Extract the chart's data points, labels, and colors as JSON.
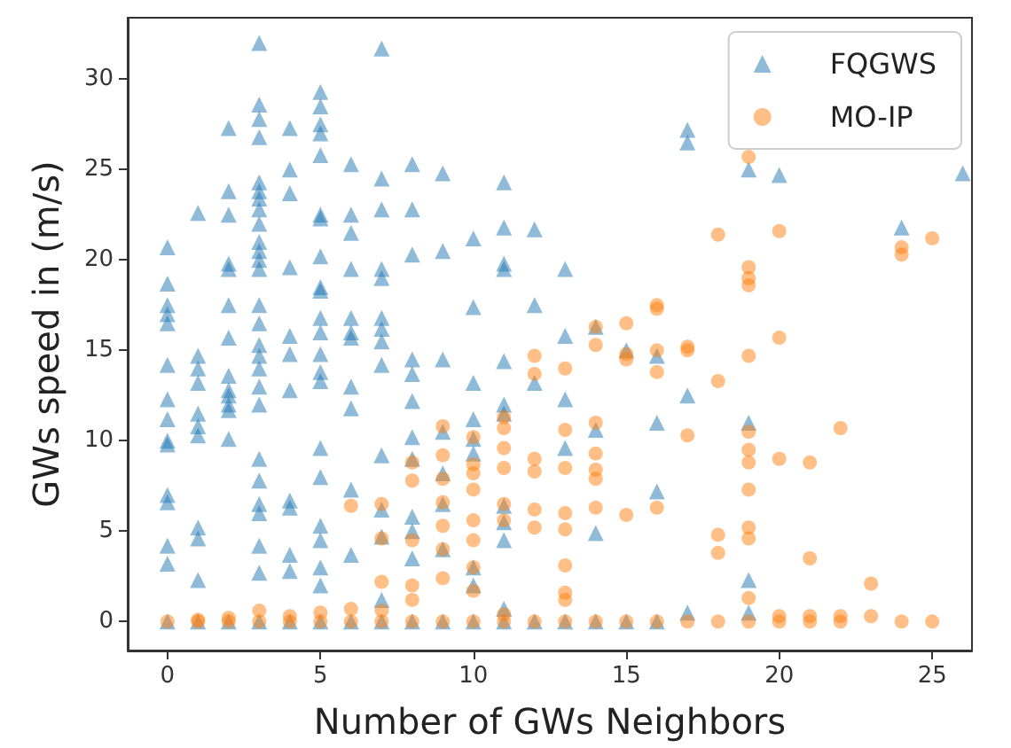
{
  "chart_data": {
    "type": "scatter",
    "xlabel": "Number of GWs Neighbors",
    "ylabel": "GWs speed in (m/s)",
    "xlim": [
      -1.3,
      26.3
    ],
    "ylim": [
      -1.6,
      33.4
    ],
    "xticks": [
      0,
      5,
      10,
      15,
      20,
      25
    ],
    "yticks": [
      0,
      5,
      10,
      15,
      20,
      25,
      30
    ],
    "grid": false,
    "legend": "top right",
    "series": [
      {
        "name": "FQGWS",
        "color": "#1f77b4",
        "marker": "triangle",
        "x": [
          0,
          0,
          0,
          0,
          0,
          0,
          0,
          0,
          0,
          0,
          0,
          0,
          0,
          0,
          0,
          1,
          1,
          1,
          1,
          1,
          1,
          1,
          1,
          1,
          1,
          1,
          2,
          2,
          2,
          2,
          2,
          2,
          2,
          2,
          2,
          2,
          2,
          2,
          2,
          2,
          3,
          3,
          3,
          3,
          3,
          3,
          3,
          3,
          3,
          3,
          3,
          3,
          3,
          3,
          3,
          3,
          3,
          3,
          3,
          3,
          3,
          3,
          3,
          3,
          3,
          3,
          3,
          4,
          4,
          4,
          4,
          4,
          4,
          4,
          4,
          4,
          4,
          4,
          4,
          5,
          5,
          5,
          5,
          5,
          5,
          5,
          5,
          5,
          5,
          5,
          5,
          5,
          5,
          5,
          5,
          5,
          5,
          5,
          5,
          5,
          5,
          6,
          6,
          6,
          6,
          6,
          6,
          6,
          6,
          6,
          6,
          6,
          6,
          7,
          7,
          7,
          7,
          7,
          7,
          7,
          7,
          7,
          7,
          7,
          7,
          7,
          7,
          8,
          8,
          8,
          8,
          8,
          8,
          8,
          8,
          8,
          8,
          8,
          8,
          9,
          9,
          9,
          9,
          9,
          9,
          9,
          9,
          10,
          10,
          10,
          10,
          10,
          10,
          10,
          10,
          10,
          11,
          11,
          11,
          11,
          11,
          11,
          11,
          11,
          11,
          11,
          11,
          11,
          12,
          12,
          12,
          12,
          13,
          13,
          13,
          13,
          13,
          14,
          14,
          14,
          14,
          15,
          15,
          16,
          16,
          16,
          16,
          17,
          17,
          17,
          17,
          19,
          19,
          19,
          19,
          20,
          24,
          26
        ],
        "values": [
          20.7,
          18.7,
          17.5,
          17,
          16.5,
          14.2,
          12.3,
          11.2,
          10,
          9.8,
          7,
          6.6,
          4.2,
          3.2,
          0,
          22.6,
          14.7,
          14,
          13.2,
          11.5,
          10.8,
          10.3,
          5.2,
          4.6,
          2.3,
          0,
          27.3,
          23.8,
          22.5,
          19.8,
          19.5,
          17.5,
          15.7,
          13.6,
          12.8,
          12.5,
          12,
          11.7,
          10.1,
          0,
          32,
          28.6,
          27.8,
          26.8,
          24.3,
          23.8,
          23.4,
          22.8,
          22,
          21,
          20.5,
          20,
          19.5,
          17.5,
          16.5,
          15.3,
          14.7,
          14,
          13,
          12,
          9,
          7.8,
          6.5,
          6,
          4.2,
          2.7,
          0,
          27.3,
          25,
          23.7,
          19.6,
          15.8,
          14.8,
          12.8,
          6.7,
          6.3,
          3.7,
          2.8,
          0,
          29.3,
          28.5,
          27.5,
          27,
          25.8,
          22.5,
          22.3,
          20.2,
          18.5,
          18.3,
          16.8,
          16,
          14.8,
          13.8,
          13.3,
          9.6,
          8,
          5.3,
          4.5,
          3,
          2,
          0,
          25.3,
          22.5,
          21.5,
          19.5,
          16.8,
          16,
          15.7,
          13,
          11.8,
          7.3,
          3.7,
          0,
          31.7,
          24.5,
          22.8,
          19.5,
          19,
          16.8,
          16.2,
          15.5,
          14.2,
          9.2,
          6.2,
          4.7,
          1.2,
          0,
          25.3,
          22.8,
          20.3,
          14.5,
          13.7,
          12.2,
          10.2,
          9,
          5.8,
          5,
          3.5,
          0,
          24.8,
          20.5,
          14.5,
          10.5,
          8.2,
          6.5,
          4,
          0,
          21.2,
          17.4,
          13.2,
          11.2,
          10.1,
          9.3,
          3,
          2,
          0,
          24.3,
          21.8,
          19.8,
          19.5,
          14.4,
          12,
          11.5,
          6.4,
          5.5,
          4.5,
          0.7,
          0,
          21.7,
          17.5,
          13.2,
          0,
          19.5,
          15.8,
          12.3,
          9.6,
          0,
          16.3,
          10.6,
          4.9,
          0,
          15,
          0,
          14.7,
          11,
          7.2,
          0,
          27.2,
          26.5,
          12.5,
          0.5,
          25,
          11,
          2.3,
          0.5,
          24.7,
          21.8,
          24.8
        ]
      },
      {
        "name": "MO-IP",
        "color": "#ff7f0e",
        "marker": "circle",
        "x": [
          0,
          1,
          1,
          2,
          2,
          3,
          3,
          4,
          4,
          5,
          5,
          6,
          6,
          6,
          7,
          7,
          7,
          7,
          7,
          8,
          8,
          8,
          8,
          8,
          8,
          9,
          9,
          9,
          9,
          9,
          9,
          9,
          9,
          10,
          10,
          10,
          10,
          10,
          10,
          10,
          10,
          10,
          11,
          11,
          11,
          11,
          11,
          11,
          11,
          11,
          12,
          12,
          12,
          12,
          12,
          12,
          12,
          13,
          13,
          13,
          13,
          13,
          13,
          13,
          13,
          13,
          14,
          14,
          14,
          14,
          14,
          14,
          14,
          14,
          15,
          15,
          15,
          15,
          15,
          16,
          16,
          16,
          16,
          16,
          16,
          17,
          17,
          17,
          17,
          18,
          18,
          18,
          18,
          18,
          19,
          19,
          19,
          19,
          19,
          19,
          19,
          19,
          19,
          19,
          19,
          19,
          19,
          20,
          20,
          20,
          20,
          20,
          21,
          21,
          21,
          21,
          22,
          22,
          22,
          23,
          23,
          24,
          24,
          24,
          25,
          25
        ],
        "values": [
          0,
          0.1,
          0,
          0.2,
          0,
          0.6,
          0,
          0.3,
          0,
          0.5,
          0,
          6.4,
          0.7,
          0,
          6.5,
          4.6,
          2.2,
          0.6,
          0,
          8.8,
          7.8,
          4.5,
          2,
          1.2,
          0,
          10.8,
          9.2,
          7.9,
          6.6,
          5.3,
          4,
          2.4,
          0,
          10.2,
          8.7,
          8.2,
          7.3,
          5.6,
          4.5,
          3,
          1.7,
          0,
          11.3,
          10.7,
          9.6,
          8.5,
          6.5,
          5.6,
          0.4,
          0,
          14.7,
          13.7,
          9,
          8.3,
          6.2,
          5.2,
          0,
          14,
          10.6,
          8.5,
          6,
          5.1,
          3.1,
          1.6,
          1.2,
          0,
          16.3,
          15.3,
          11,
          9.3,
          8.4,
          7.9,
          6.3,
          0,
          16.5,
          14.8,
          14.5,
          5.9,
          0,
          17.5,
          17.3,
          15,
          13.8,
          6.3,
          0,
          15.2,
          15,
          10.3,
          0,
          21.4,
          13.3,
          4.8,
          3.8,
          0,
          25.7,
          19.6,
          19,
          18.6,
          14.7,
          10.5,
          9.5,
          8.8,
          7.3,
          5.2,
          4.6,
          1.3,
          0,
          21.6,
          15.7,
          9,
          0.3,
          0,
          8.8,
          3.5,
          0.3,
          0,
          10.7,
          0.3,
          0,
          2.1,
          0.3,
          20.7,
          20.3,
          0,
          21.2,
          0
        ]
      }
    ]
  }
}
